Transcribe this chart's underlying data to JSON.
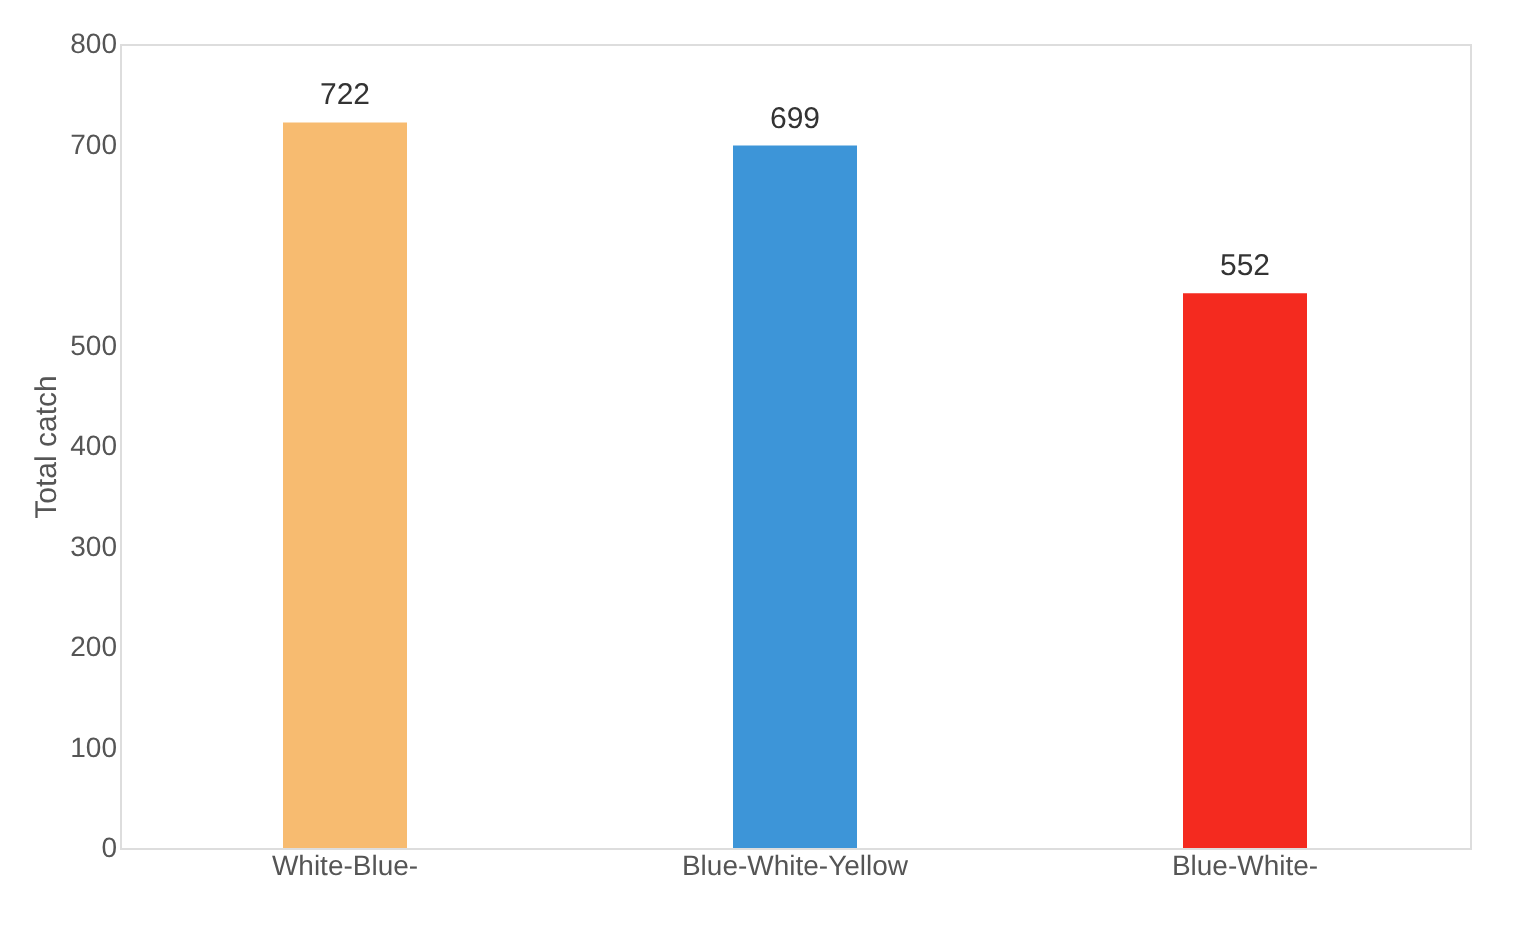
{
  "chart_data": {
    "type": "bar",
    "ylabel": "Total catch",
    "categories": [
      "White-Blue-",
      "Blue-White-Yellow",
      "Blue-White-"
    ],
    "values": [
      722,
      699,
      552
    ],
    "colors": [
      "#f7bb70",
      "#3d95d8",
      "#f42a1f"
    ],
    "ylim": [
      0,
      800
    ],
    "yticks": [
      0,
      100,
      200,
      300,
      400,
      500,
      700,
      800
    ],
    "data_labels": true,
    "grid": false
  }
}
